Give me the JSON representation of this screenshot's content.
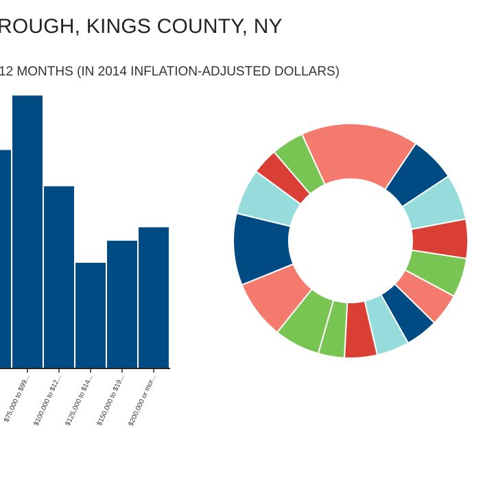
{
  "page": {
    "title": "ROUGH, KINGS COUNTY, NY",
    "subtitle": "12 MONTHS (IN 2014 INFLATION-ADJUSTED DOLLARS)"
  },
  "chart_data": [
    {
      "type": "bar",
      "categories": [
        "",
        "$75,000 to $99...",
        "$100,000 to $12...",
        "$125,000 to $14...",
        "$150,000 to $19...",
        "$200,000 or mor..."
      ],
      "values": [
        276,
        345,
        230,
        133,
        161,
        178
      ],
      "ylim": [
        0,
        400
      ],
      "color": "#004b84",
      "grid": false
    },
    {
      "type": "pie",
      "donut": true,
      "values": [
        18,
        7,
        7,
        6,
        6,
        5,
        5,
        5,
        5,
        4,
        7,
        9,
        11,
        7,
        4,
        5
      ],
      "colors": [
        "#f47a6e",
        "#004b84",
        "#96dcdd",
        "#d93f35",
        "#79c553",
        "#f47a6e",
        "#004b84",
        "#96dcdd",
        "#d93f35",
        "#79c553",
        "#79c553",
        "#f47a6e",
        "#004b84",
        "#96dcdd",
        "#d93f35",
        "#79c553"
      ]
    }
  ]
}
